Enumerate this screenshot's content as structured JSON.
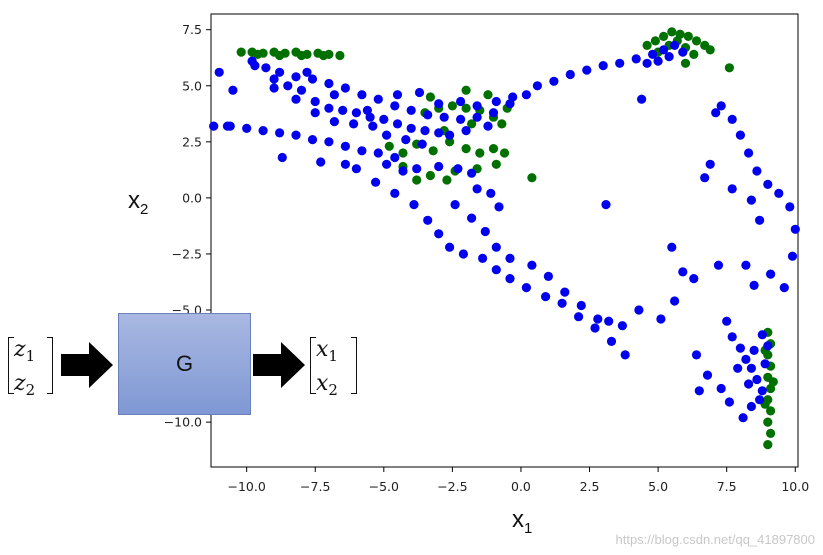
{
  "chart_data": {
    "type": "scatter",
    "title": "",
    "xlabel": "x1",
    "ylabel": "x2",
    "xlim": [
      -11.3,
      10.1
    ],
    "ylim": [
      -12.0,
      8.2
    ],
    "xticks": [
      "−10.0",
      "−7.5",
      "−5.0",
      "−2.5",
      "0.0",
      "2.5",
      "5.0",
      "7.5",
      "10.0"
    ],
    "xtick_values": [
      -10,
      -7.5,
      -5,
      -2.5,
      0,
      2.5,
      5,
      7.5,
      10
    ],
    "yticks": [
      "7.5",
      "5.0",
      "2.5",
      "0.0",
      "−2.5",
      "−5.0",
      "−7.5",
      "−10.0"
    ],
    "ytick_values": [
      7.5,
      5,
      2.5,
      0,
      -2.5,
      -5,
      -7.5,
      -10
    ],
    "grid": false,
    "series": [
      {
        "color": "#007000",
        "points": [
          [
            -10.2,
            6.5
          ],
          [
            -9.8,
            6.5
          ],
          [
            -9.4,
            6.45
          ],
          [
            -9.0,
            6.5
          ],
          [
            -8.6,
            6.45
          ],
          [
            -8.2,
            6.5
          ],
          [
            -7.8,
            6.4
          ],
          [
            -7.4,
            6.45
          ],
          [
            -7.0,
            6.4
          ],
          [
            -6.6,
            6.35
          ],
          [
            -9.6,
            6.4
          ],
          [
            -8.8,
            6.35
          ],
          [
            -8.0,
            6.35
          ],
          [
            -7.2,
            6.35
          ],
          [
            4.6,
            6.8
          ],
          [
            4.9,
            7.0
          ],
          [
            5.2,
            7.2
          ],
          [
            5.5,
            7.4
          ],
          [
            5.8,
            7.3
          ],
          [
            6.1,
            7.2
          ],
          [
            6.4,
            7.0
          ],
          [
            6.7,
            6.8
          ],
          [
            6.9,
            6.6
          ],
          [
            5.0,
            6.5
          ],
          [
            5.4,
            6.8
          ],
          [
            6.0,
            6.7
          ],
          [
            6.3,
            6.4
          ],
          [
            5.7,
            7.0
          ],
          [
            7.6,
            5.8
          ],
          [
            6.0,
            6.0
          ],
          [
            -3.5,
            3.8
          ],
          [
            -3.0,
            4.0
          ],
          [
            -2.5,
            4.1
          ],
          [
            -2.0,
            4.0
          ],
          [
            -1.5,
            3.9
          ],
          [
            -1.0,
            3.6
          ],
          [
            -0.7,
            3.3
          ],
          [
            -1.2,
            4.6
          ],
          [
            -2.0,
            4.8
          ],
          [
            -3.3,
            4.5
          ],
          [
            -4.8,
            2.3
          ],
          [
            -4.3,
            2.0
          ],
          [
            -3.8,
            2.4
          ],
          [
            -3.2,
            2.1
          ],
          [
            -2.6,
            2.5
          ],
          [
            -2.0,
            2.2
          ],
          [
            -1.5,
            2.0
          ],
          [
            -1.0,
            2.2
          ],
          [
            -0.6,
            2.0
          ],
          [
            -0.9,
            1.5
          ],
          [
            -1.6,
            1.3
          ],
          [
            -2.4,
            1.2
          ],
          [
            -3.3,
            1.0
          ],
          [
            -3.8,
            0.8
          ],
          [
            -4.3,
            1.4
          ],
          [
            -2.7,
            0.8
          ],
          [
            0.4,
            0.9
          ],
          [
            -0.5,
            4.0
          ],
          [
            -1.8,
            3.3
          ],
          [
            -2.8,
            3.0
          ],
          [
            9.0,
            -6.0
          ],
          [
            9.1,
            -6.5
          ],
          [
            9.0,
            -7.0
          ],
          [
            9.1,
            -7.5
          ],
          [
            9.0,
            -8.0
          ],
          [
            9.1,
            -8.5
          ],
          [
            9.0,
            -9.0
          ],
          [
            9.1,
            -9.5
          ],
          [
            9.0,
            -10.0
          ],
          [
            9.1,
            -10.5
          ],
          [
            9.0,
            -11.0
          ],
          [
            8.9,
            -6.8
          ],
          [
            9.2,
            -8.2
          ],
          [
            8.9,
            -9.2
          ]
        ]
      },
      {
        "color": "#0000ee",
        "points": [
          [
            -11.0,
            5.6
          ],
          [
            -10.5,
            4.8
          ],
          [
            -9.7,
            5.9
          ],
          [
            -9.0,
            5.3
          ],
          [
            -8.5,
            5.0
          ],
          [
            -8.0,
            4.8
          ],
          [
            -7.5,
            4.3
          ],
          [
            -7.0,
            4.0
          ],
          [
            -6.5,
            3.9
          ],
          [
            -6.0,
            3.8
          ],
          [
            -5.5,
            3.6
          ],
          [
            -5.0,
            3.5
          ],
          [
            -4.5,
            3.3
          ],
          [
            -4.0,
            3.1
          ],
          [
            -3.5,
            3.0
          ],
          [
            -3.0,
            2.9
          ],
          [
            -9.8,
            6.1
          ],
          [
            -9.3,
            5.8
          ],
          [
            -8.8,
            5.6
          ],
          [
            -8.2,
            5.4
          ],
          [
            -7.6,
            5.3
          ],
          [
            -7.0,
            5.1
          ],
          [
            -6.4,
            4.9
          ],
          [
            -5.8,
            4.6
          ],
          [
            -5.2,
            4.4
          ],
          [
            -4.6,
            4.1
          ],
          [
            -4.0,
            3.9
          ],
          [
            -3.4,
            3.7
          ],
          [
            -2.8,
            3.6
          ],
          [
            -2.2,
            3.5
          ],
          [
            -1.6,
            3.6
          ],
          [
            -1.0,
            3.8
          ],
          [
            -0.4,
            4.2
          ],
          [
            0.2,
            4.6
          ],
          [
            -11.2,
            3.2
          ],
          [
            -10.6,
            3.2
          ],
          [
            -10.0,
            3.1
          ],
          [
            -9.4,
            3.0
          ],
          [
            -8.8,
            2.9
          ],
          [
            -8.2,
            2.8
          ],
          [
            -7.6,
            2.6
          ],
          [
            -7.0,
            2.5
          ],
          [
            -6.4,
            2.3
          ],
          [
            -5.8,
            2.1
          ],
          [
            -5.2,
            2.0
          ],
          [
            -4.6,
            1.8
          ],
          [
            -8.7,
            1.8
          ],
          [
            -7.3,
            1.6
          ],
          [
            -6.4,
            1.5
          ],
          [
            -6.0,
            1.3
          ],
          [
            -4.9,
            1.5
          ],
          [
            -4.3,
            1.2
          ],
          [
            -3.8,
            1.3
          ],
          [
            -3.0,
            1.4
          ],
          [
            -2.3,
            1.3
          ],
          [
            -1.8,
            1.1
          ],
          [
            -9.0,
            4.9
          ],
          [
            -8.2,
            4.4
          ],
          [
            -7.5,
            3.8
          ],
          [
            -6.8,
            3.4
          ],
          [
            -6.1,
            3.3
          ],
          [
            -5.4,
            3.2
          ],
          [
            -4.9,
            2.8
          ],
          [
            -4.2,
            2.6
          ],
          [
            -3.6,
            2.4
          ],
          [
            -2.6,
            2.8
          ],
          [
            -2.0,
            3.0
          ],
          [
            -1.2,
            3.2
          ],
          [
            0.6,
            5.0
          ],
          [
            1.2,
            5.2
          ],
          [
            1.8,
            5.5
          ],
          [
            2.4,
            5.7
          ],
          [
            3.0,
            5.9
          ],
          [
            3.6,
            6.0
          ],
          [
            4.2,
            6.2
          ],
          [
            4.8,
            6.4
          ],
          [
            5.2,
            6.6
          ],
          [
            5.6,
            6.8
          ],
          [
            5.9,
            6.5
          ],
          [
            5.4,
            6.3
          ],
          [
            5.0,
            6.1
          ],
          [
            4.6,
            6.0
          ],
          [
            4.4,
            4.4
          ],
          [
            -5.3,
            0.7
          ],
          [
            -4.6,
            0.2
          ],
          [
            -3.9,
            -0.3
          ],
          [
            -3.4,
            -1.0
          ],
          [
            -3.0,
            -1.6
          ],
          [
            -2.6,
            -2.2
          ],
          [
            -2.1,
            -2.5
          ],
          [
            -1.4,
            -2.7
          ],
          [
            -0.9,
            -3.2
          ],
          [
            -0.4,
            -3.6
          ],
          [
            0.2,
            -4.0
          ],
          [
            0.9,
            -4.4
          ],
          [
            1.5,
            -4.7
          ],
          [
            2.1,
            -5.3
          ],
          [
            2.7,
            -5.8
          ],
          [
            3.3,
            -6.4
          ],
          [
            3.8,
            -7.0
          ],
          [
            -2.4,
            -0.3
          ],
          [
            -1.8,
            -0.9
          ],
          [
            -1.3,
            -1.5
          ],
          [
            -0.9,
            -2.2
          ],
          [
            -0.4,
            -2.7
          ],
          [
            0.4,
            -3.0
          ],
          [
            1.0,
            -3.5
          ],
          [
            1.6,
            -4.2
          ],
          [
            2.2,
            -4.8
          ],
          [
            2.8,
            -5.4
          ],
          [
            3.2,
            -5.5
          ],
          [
            3.7,
            -5.7
          ],
          [
            -1.6,
            0.4
          ],
          [
            -1.1,
            0.2
          ],
          [
            -0.8,
            -0.4
          ],
          [
            3.1,
            -0.3
          ],
          [
            4.3,
            -5.0
          ],
          [
            5.1,
            -5.4
          ],
          [
            5.6,
            -4.6
          ],
          [
            5.5,
            -2.2
          ],
          [
            5.9,
            -3.3
          ],
          [
            6.3,
            -3.6
          ],
          [
            7.2,
            -3.0
          ],
          [
            8.2,
            -3.0
          ],
          [
            8.5,
            -3.9
          ],
          [
            9.1,
            -3.4
          ],
          [
            9.6,
            -4.0
          ],
          [
            9.9,
            -2.6
          ],
          [
            10.0,
            -1.4
          ],
          [
            9.8,
            -0.4
          ],
          [
            9.4,
            0.2
          ],
          [
            9.0,
            0.6
          ],
          [
            8.6,
            1.2
          ],
          [
            8.3,
            2.0
          ],
          [
            8.0,
            2.8
          ],
          [
            7.7,
            3.5
          ],
          [
            7.3,
            4.1
          ],
          [
            7.1,
            3.8
          ],
          [
            6.7,
            0.9
          ],
          [
            6.9,
            1.5
          ],
          [
            7.7,
            0.4
          ],
          [
            8.4,
            -0.1
          ],
          [
            8.7,
            -1.0
          ],
          [
            7.5,
            -5.5
          ],
          [
            7.7,
            -6.2
          ],
          [
            8.0,
            -6.7
          ],
          [
            8.2,
            -7.2
          ],
          [
            8.4,
            -7.6
          ],
          [
            8.6,
            -8.1
          ],
          [
            8.8,
            -8.6
          ],
          [
            8.7,
            -9.0
          ],
          [
            8.4,
            -9.3
          ],
          [
            8.1,
            -9.8
          ],
          [
            7.6,
            -9.1
          ],
          [
            7.3,
            -8.5
          ],
          [
            6.5,
            -8.6
          ],
          [
            6.4,
            -7.0
          ],
          [
            6.8,
            -7.9
          ],
          [
            7.9,
            -7.6
          ],
          [
            8.3,
            -8.3
          ],
          [
            8.9,
            -7.4
          ],
          [
            9.0,
            -6.6
          ],
          [
            8.8,
            -6.1
          ],
          [
            8.5,
            -6.8
          ],
          [
            -2.2,
            4.3
          ],
          [
            -1.6,
            4.1
          ],
          [
            -0.9,
            4.3
          ],
          [
            -0.3,
            4.5
          ],
          [
            -4.5,
            4.6
          ],
          [
            -3.7,
            4.7
          ],
          [
            -3.0,
            4.2
          ],
          [
            -5.6,
            3.9
          ],
          [
            -6.8,
            4.6
          ],
          [
            -7.8,
            5.6
          ],
          [
            -10.7,
            3.2
          ]
        ]
      }
    ]
  },
  "diagram": {
    "input_vec": [
      "z",
      "1",
      "z",
      "2"
    ],
    "box_label": "G",
    "output_vec": [
      "x",
      "1",
      "x",
      "2"
    ]
  },
  "watermark": "https://blog.csdn.net/qq_41897800"
}
